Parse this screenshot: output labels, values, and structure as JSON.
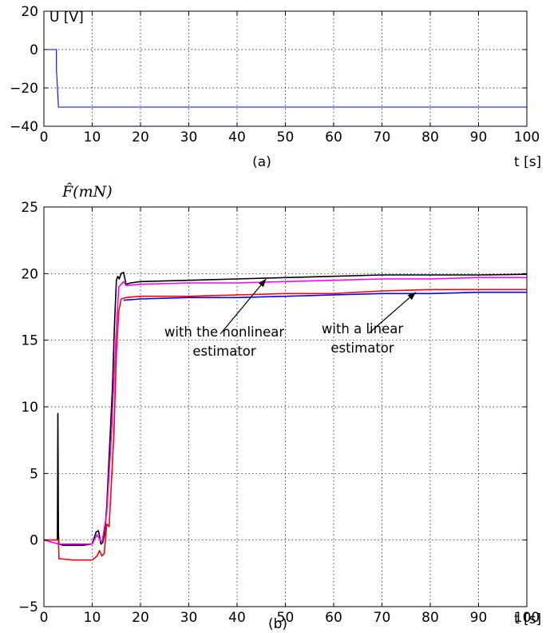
{
  "chart_data": [
    {
      "type": "line",
      "panel_label": "(a)",
      "ylabel": "U [V]",
      "xlabel": "t [s]",
      "xlim": [
        0,
        100
      ],
      "ylim": [
        -40,
        20
      ],
      "xticks": [
        0,
        10,
        20,
        30,
        40,
        50,
        60,
        70,
        80,
        90,
        100
      ],
      "yticks": [
        -40,
        -20,
        0,
        20
      ],
      "grid": true,
      "series": [
        {
          "color": "#0000ff",
          "x": [
            0,
            2.6,
            2.6,
            3.0,
            100
          ],
          "y": [
            0,
            0,
            -10,
            -30,
            -30
          ]
        }
      ]
    },
    {
      "type": "line",
      "panel_label": "(b)",
      "ylabel": "F̂(mN)",
      "xlabel": "t [s]",
      "xlim": [
        0,
        100
      ],
      "ylim": [
        -5,
        25
      ],
      "xticks": [
        0,
        10,
        20,
        30,
        40,
        50,
        60,
        70,
        80,
        90,
        100
      ],
      "yticks": [
        -5,
        0,
        5,
        10,
        15,
        20,
        25
      ],
      "grid": true,
      "annotations": [
        {
          "text": [
            "with the nonlinear",
            "estimator"
          ],
          "arrow_to": [
            46,
            19.6
          ]
        },
        {
          "text": [
            "with a linear",
            "estimator"
          ],
          "arrow_to": [
            77,
            18.6
          ]
        }
      ],
      "series": [
        {
          "color": "#000000",
          "x": [
            0,
            2,
            2.8,
            2.9,
            3.0,
            3.1,
            4,
            6,
            8,
            10,
            10.8,
            11.3,
            11.8,
            12.2,
            12.6,
            13.0,
            13.4,
            13.8,
            14.2,
            14.6,
            15.0,
            15.3,
            15.6,
            16.0,
            16.5,
            17.0,
            18,
            20,
            30,
            40,
            50,
            60,
            70,
            80,
            90,
            100
          ],
          "y": [
            0,
            0,
            0,
            9.5,
            0.5,
            -0.3,
            -0.4,
            -0.4,
            -0.4,
            -0.3,
            0.6,
            0.7,
            -0.3,
            -0.2,
            0.5,
            2.5,
            5.5,
            8.5,
            11.5,
            16.0,
            19.5,
            19.8,
            19.6,
            20.0,
            20.1,
            19.2,
            19.3,
            19.4,
            19.5,
            19.6,
            19.7,
            19.8,
            19.9,
            19.9,
            19.9,
            19.95
          ]
        },
        {
          "color": "#ff00ff",
          "x": [
            0,
            3,
            10,
            11,
            12,
            13,
            14,
            15,
            15.5,
            16.5,
            17,
            20,
            30,
            40,
            50,
            60,
            70,
            80,
            90,
            100
          ],
          "y": [
            0,
            -0.3,
            -0.3,
            0.4,
            -0.2,
            2.0,
            8.0,
            16.0,
            19.0,
            19.4,
            19.1,
            19.2,
            19.3,
            19.3,
            19.4,
            19.5,
            19.6,
            19.6,
            19.7,
            19.7
          ]
        },
        {
          "color": "#ff0000",
          "x": [
            0,
            3,
            3.1,
            6,
            10,
            11,
            11.5,
            12,
            12.5,
            13.0,
            13.5,
            14,
            14.5,
            15.0,
            15.5,
            16,
            17,
            20,
            30,
            40,
            50,
            60,
            70,
            80,
            90,
            100
          ],
          "y": [
            0,
            0,
            -1.4,
            -1.5,
            -1.5,
            -1.2,
            -0.8,
            -1.2,
            -1.0,
            1.2,
            1.0,
            4.5,
            8.0,
            14.0,
            17.2,
            18.1,
            18.2,
            18.3,
            18.3,
            18.4,
            18.5,
            18.5,
            18.7,
            18.8,
            18.8,
            18.8
          ]
        },
        {
          "color": "#0000ff",
          "x": [
            16.5,
            20,
            30,
            40,
            50,
            60,
            70,
            80,
            90,
            100
          ],
          "y": [
            18.0,
            18.1,
            18.2,
            18.2,
            18.3,
            18.4,
            18.5,
            18.5,
            18.6,
            18.6
          ]
        }
      ]
    }
  ]
}
